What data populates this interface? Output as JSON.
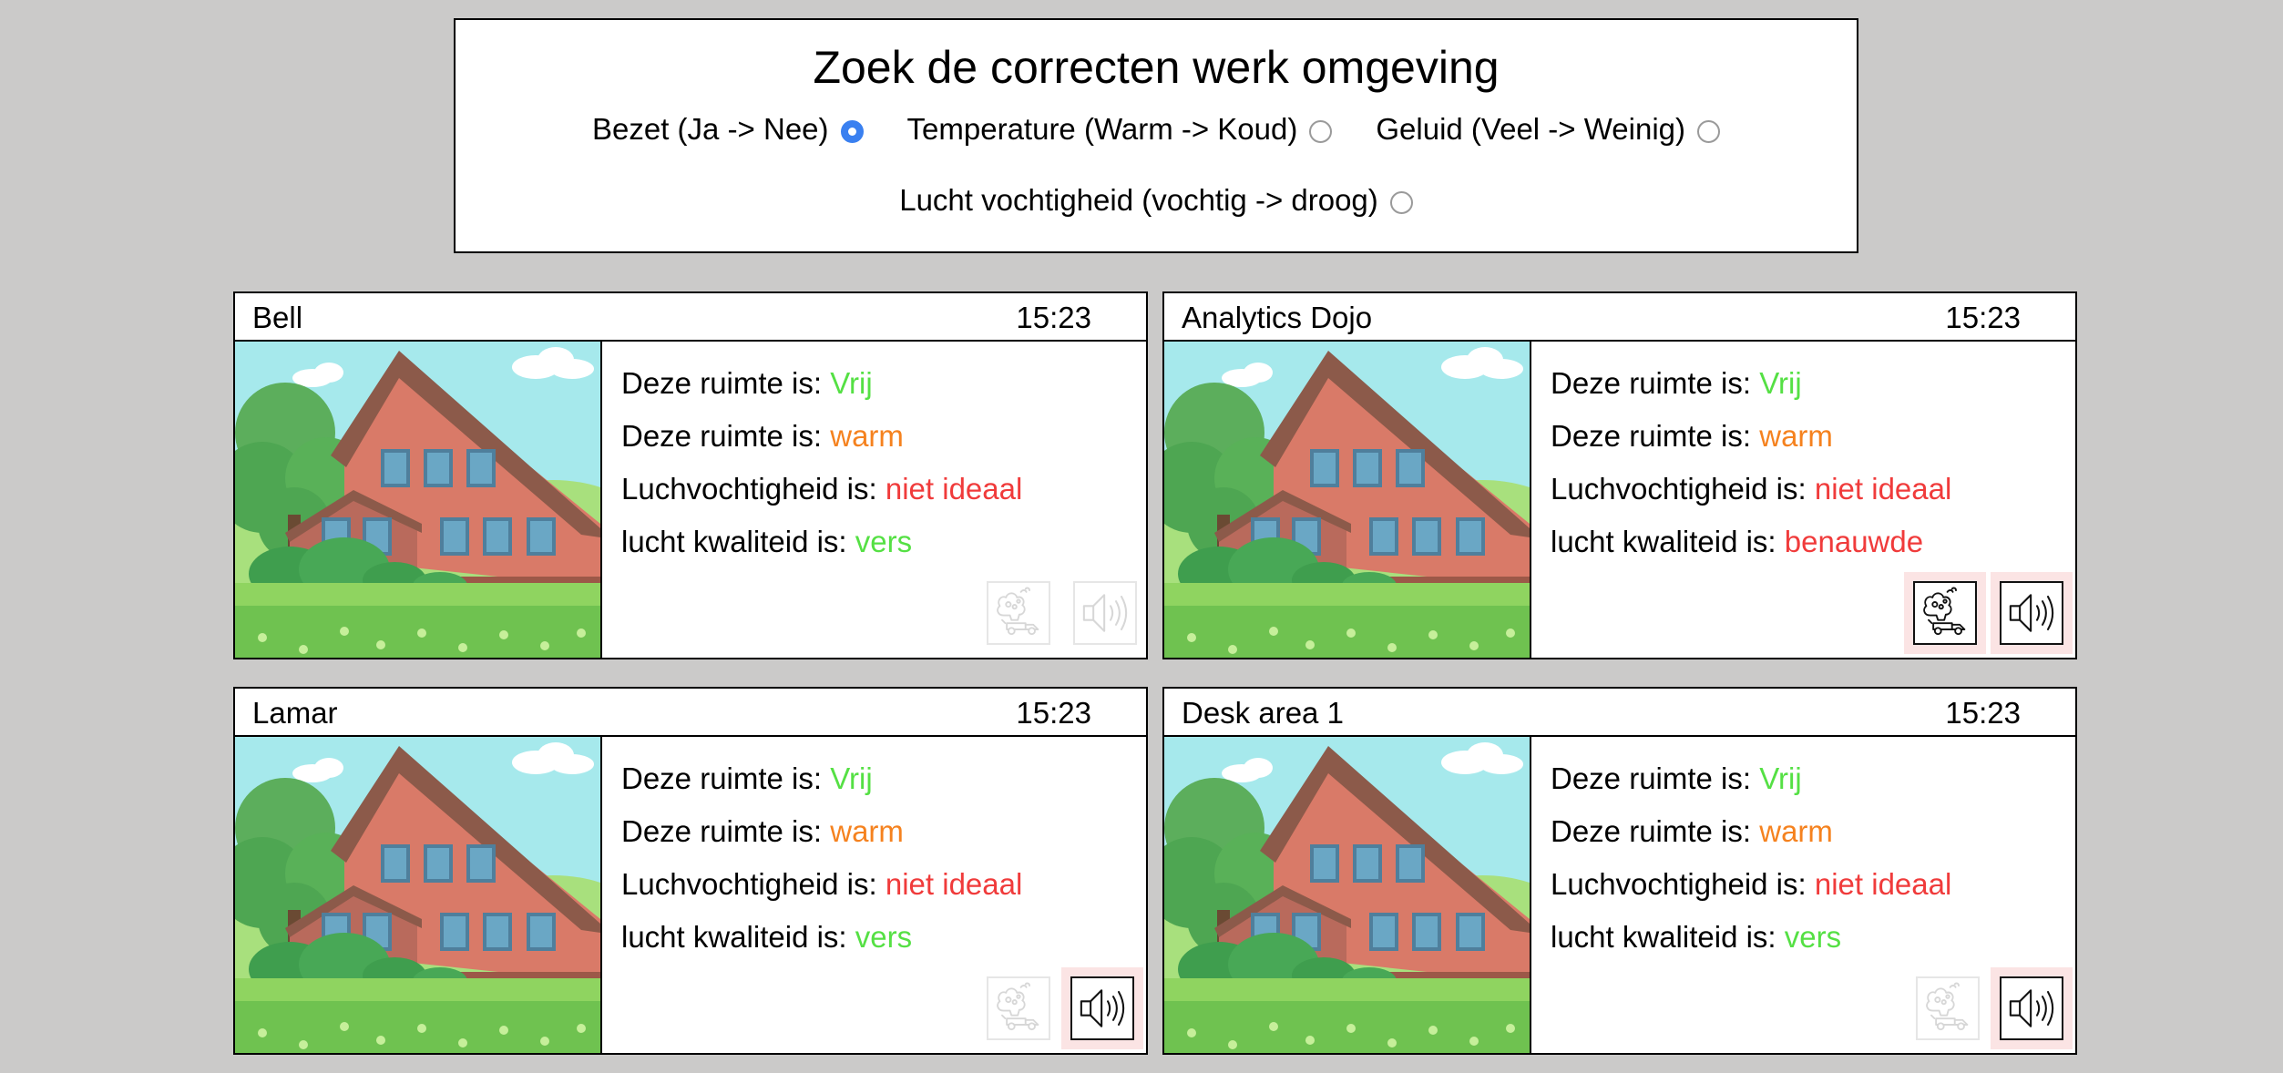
{
  "filter": {
    "title": "Zoek de correcten werk omgeving",
    "options": [
      {
        "label": "Bezet (Ja -> Nee)",
        "checked": true
      },
      {
        "label": "Temperature (Warm -> Koud)",
        "checked": false
      },
      {
        "label": "Geluid (Veel -> Weinig)",
        "checked": false
      },
      {
        "label": "Lucht vochtigheid (vochtig -> droog)",
        "checked": false
      }
    ]
  },
  "labels": {
    "occupancy": "Deze ruimte is:",
    "temperature": "Deze ruimte is:",
    "humidity": "Luchvochtigheid is:",
    "air_quality": "lucht kwaliteid is:"
  },
  "colors": {
    "good": "#55e044",
    "warm": "#f5821f",
    "bad": "#f03b3b",
    "selected_radio": "#3a80f0",
    "alert_bg": "#fbe4e4"
  },
  "rooms": [
    {
      "name": "Bell",
      "time": "15:23",
      "occupancy": "Vrij",
      "temperature": "warm",
      "humidity": "niet ideaal",
      "air_quality": "vers",
      "alerts": {
        "air": false,
        "sound": false
      }
    },
    {
      "name": "Analytics Dojo",
      "time": "15:23",
      "occupancy": "Vrij",
      "temperature": "warm",
      "humidity": "niet ideaal",
      "air_quality": "benauwde",
      "alerts": {
        "air": true,
        "sound": true
      }
    },
    {
      "name": "Lamar",
      "time": "15:23",
      "occupancy": "Vrij",
      "temperature": "warm",
      "humidity": "niet ideaal",
      "air_quality": "vers",
      "alerts": {
        "air": false,
        "sound": true
      }
    },
    {
      "name": "Desk area 1",
      "time": "15:23",
      "occupancy": "Vrij",
      "temperature": "warm",
      "humidity": "niet ideaal",
      "air_quality": "vers",
      "alerts": {
        "air": false,
        "sound": true
      }
    }
  ],
  "icons": {
    "air": "air-pollution-icon",
    "sound": "speaker-volume-icon",
    "image": "house-illustration-icon"
  }
}
